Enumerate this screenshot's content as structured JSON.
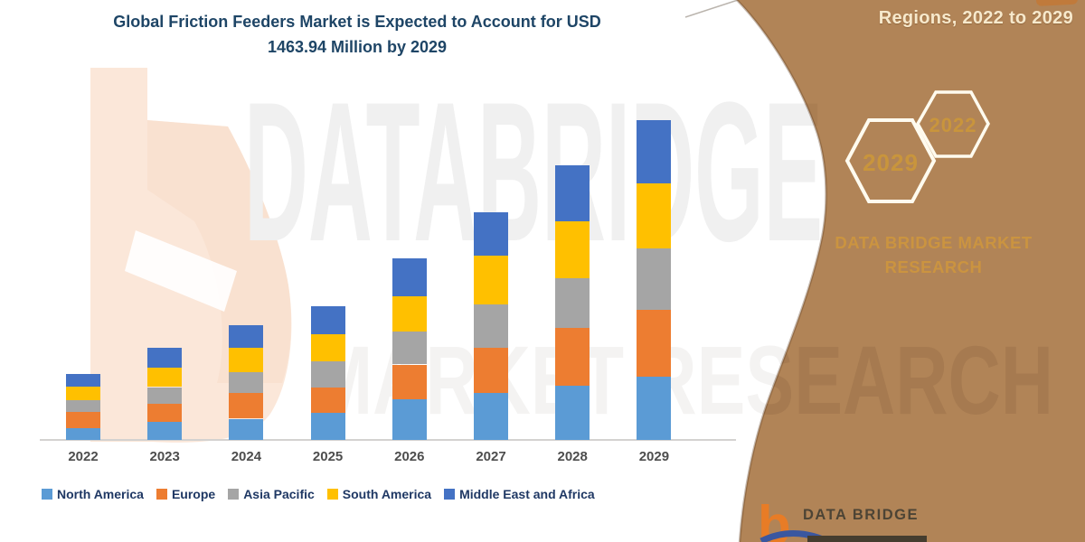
{
  "title": {
    "line1": "Global Friction Feeders Market is Expected to Account for USD",
    "line2": "1463.94 Million by 2029"
  },
  "side_panel": {
    "caption": "Regions, 2022 to 2029",
    "hexagon_big_label": "2029",
    "hexagon_small_label": "2022",
    "brand_line1": "DATA BRIDGE MARKET",
    "brand_line2": "RESEARCH",
    "footer_brand": "DATA BRIDGE",
    "panel_color": "#B18457",
    "gold_color": "#CB9440",
    "caption_color": "#F7E9CC"
  },
  "watermarks": {
    "line1": "DATABRIDGE",
    "line2": "MARKET RESEARCH"
  },
  "chart_data": {
    "type": "bar",
    "stacked": true,
    "title": "Global Friction Feeders Market is Expected to Account for USD 1463.94 Million by 2029",
    "units": "USD Million",
    "legend_position": "bottom",
    "grid": false,
    "categories": [
      "2022",
      "2023",
      "2024",
      "2025",
      "2026",
      "2027",
      "2028",
      "2029"
    ],
    "series": [
      {
        "name": "North America",
        "color": "#5B9BD5",
        "values": [
          55.1,
          82.8,
          96.9,
          124.3,
          186.4,
          214.2,
          248.5,
          290.0
        ]
      },
      {
        "name": "Europe",
        "color": "#ED7D31",
        "values": [
          73.3,
          82.8,
          117.2,
          117.2,
          159.1,
          207.1,
          262.6,
          304.1
        ]
      },
      {
        "name": "Asia Pacific",
        "color": "#A5A5A5",
        "values": [
          55.1,
          76.2,
          96.5,
          117.2,
          151.6,
          200.1,
          227.8,
          282.9
        ]
      },
      {
        "name": "South America",
        "color": "#FFC000",
        "values": [
          59.7,
          89.5,
          110.6,
          124.3,
          159.1,
          221.2,
          262.2,
          297.0
        ]
      },
      {
        "name": "Middle East and Africa",
        "color": "#4472C4",
        "values": [
          60.5,
          89.9,
          103.6,
          131.3,
          175.2,
          198.8,
          255.6,
          289.9
        ]
      }
    ],
    "totals_estimated": [
      303.7,
      421.2,
      524.8,
      614.3,
      831.4,
      1041.4,
      1256.7,
      1463.94
    ]
  }
}
